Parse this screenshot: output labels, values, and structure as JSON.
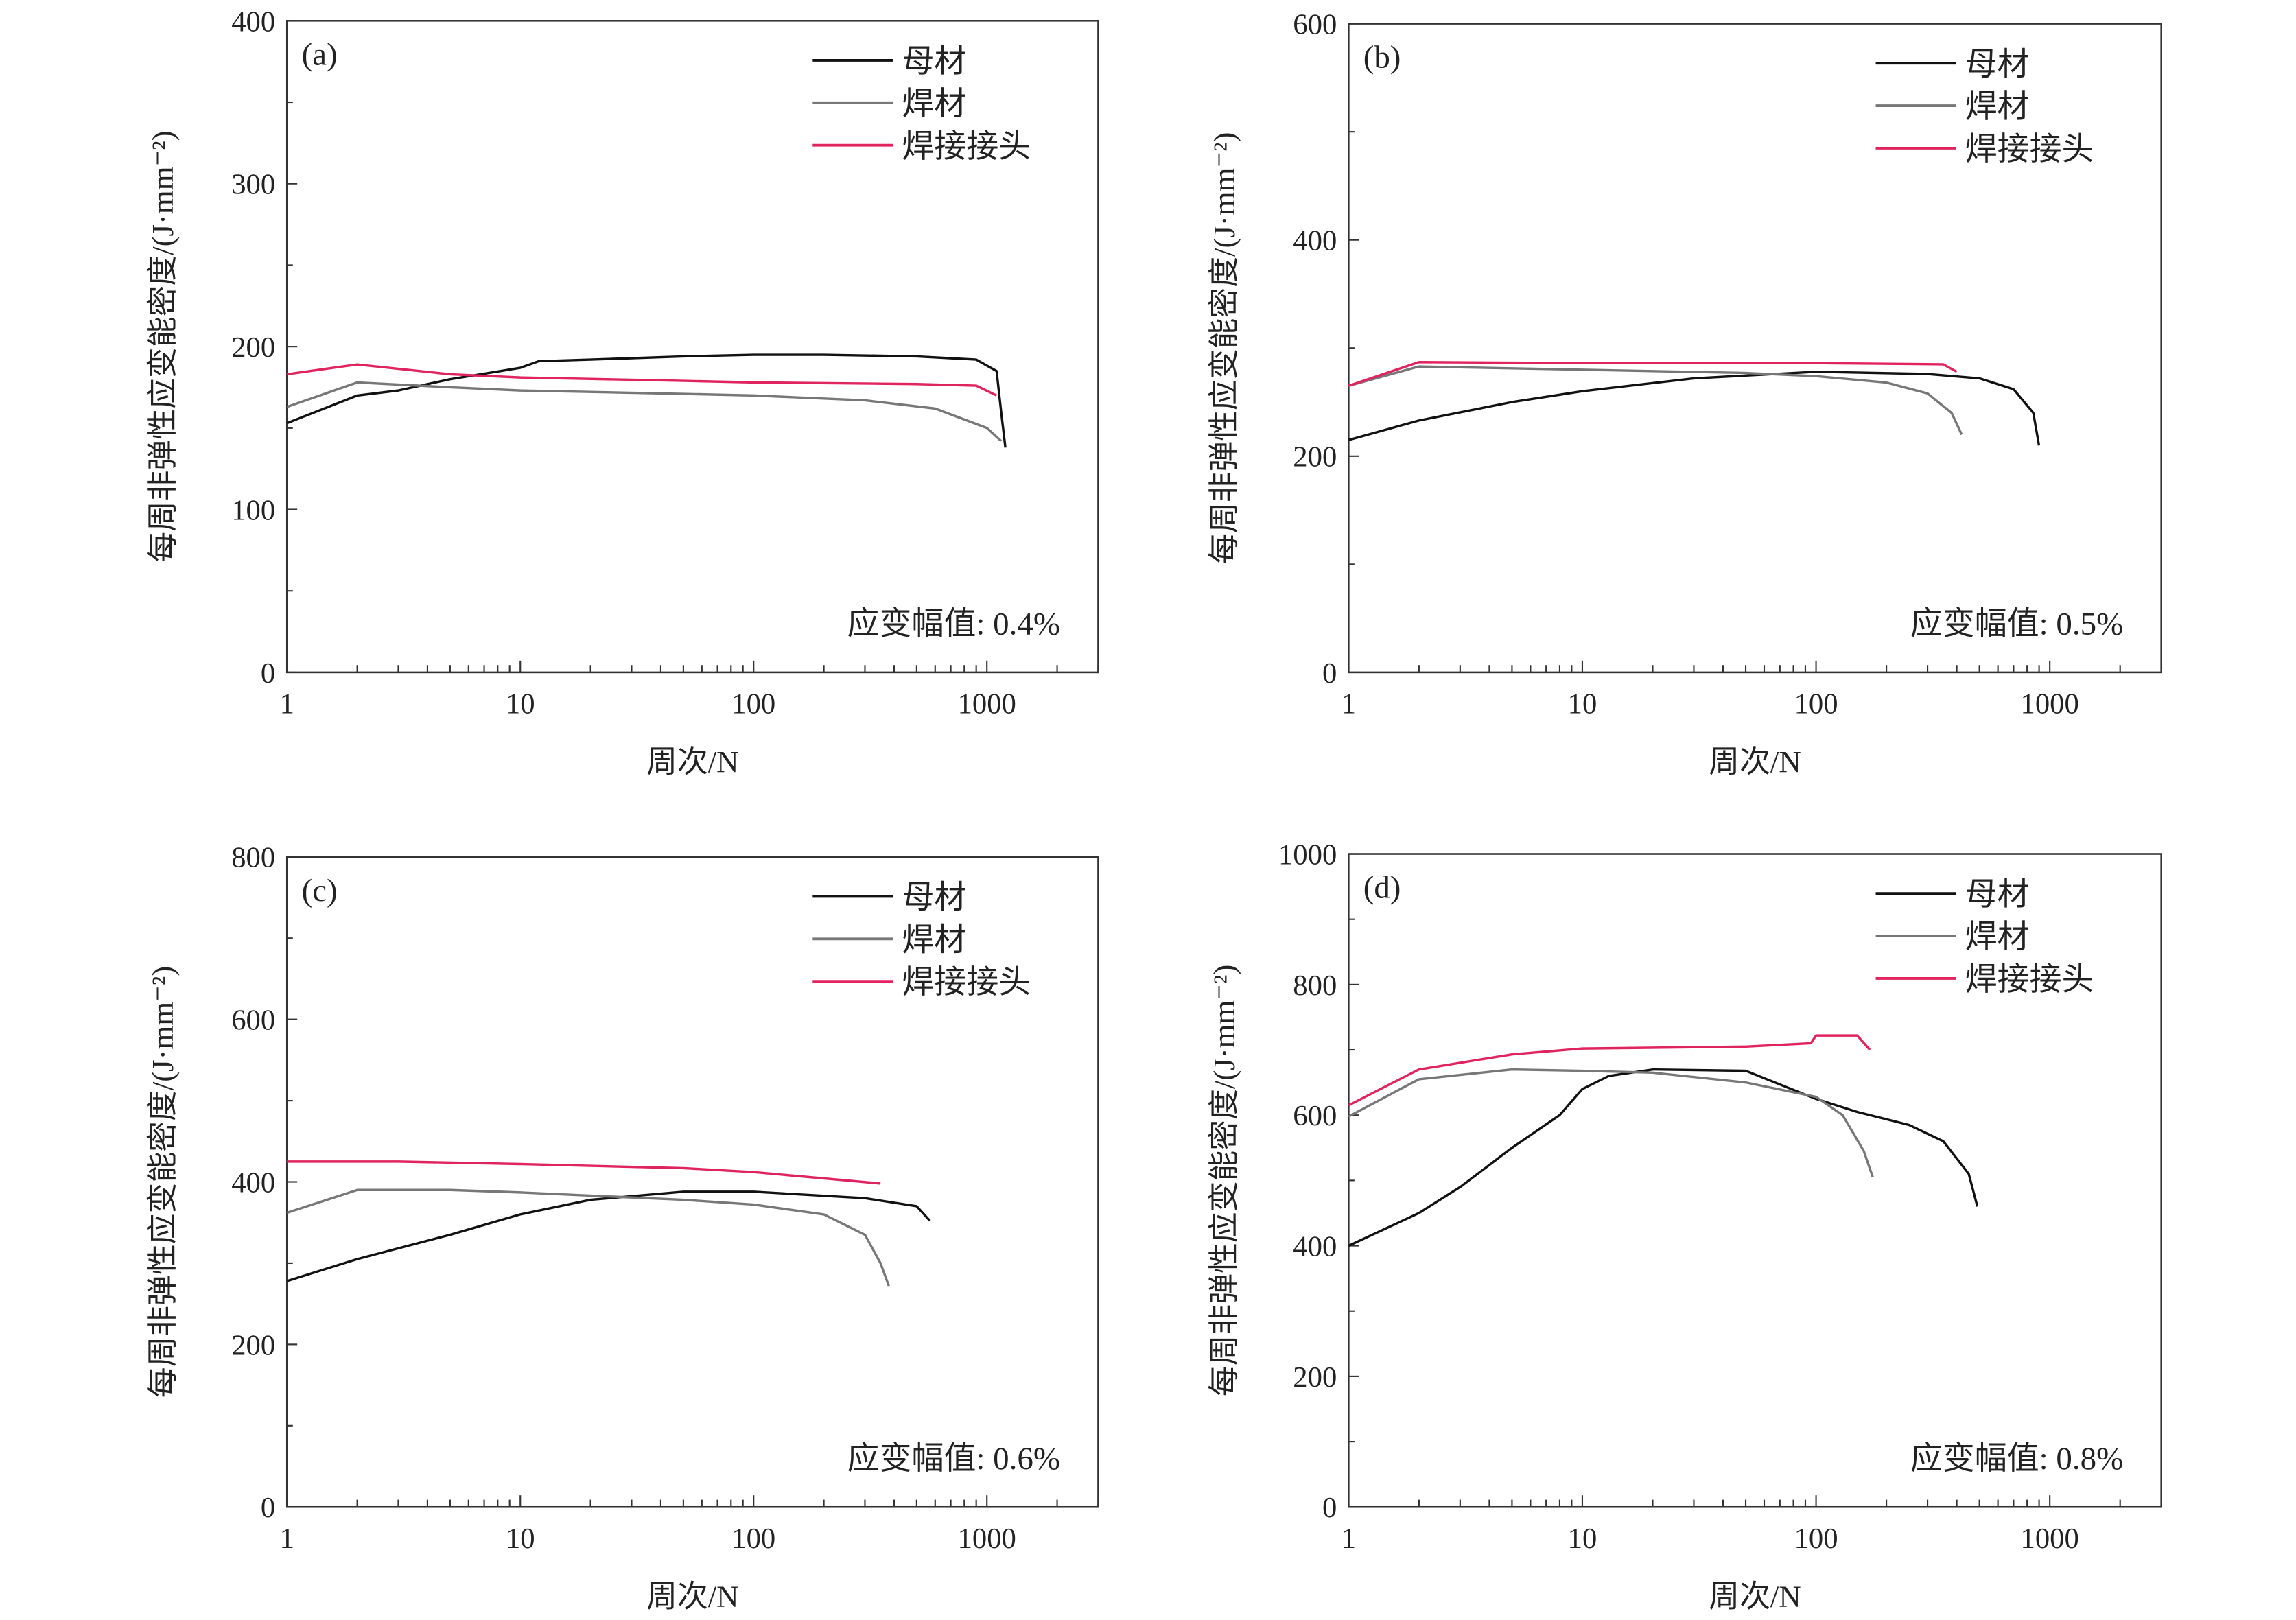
{
  "chart_data": [
    {
      "type": "line",
      "panel_label": "(a)",
      "annotation": "应变幅值: 0.4%",
      "xlabel": "周次/N",
      "ylabel": "每周非弹性应变能密度/(J·mm⁻²)",
      "xscale": "log",
      "xlim": [
        1,
        3000
      ],
      "ylim": [
        0,
        400
      ],
      "xticks": [
        1,
        10,
        100,
        1000
      ],
      "xtick_labels": [
        "1",
        "10",
        "100",
        "1000"
      ],
      "yticks": [
        0,
        100,
        200,
        300,
        400
      ],
      "ytick_labels": [
        "0",
        "100",
        "200",
        "300",
        "400"
      ],
      "legend_placement": "top-right",
      "series": [
        {
          "name": "母材",
          "color": "#111111",
          "x": [
            1,
            2,
            3,
            5,
            10,
            12,
            20,
            50,
            100,
            200,
            500,
            900,
            1100,
            1150,
            1200
          ],
          "y": [
            153,
            170,
            173,
            180,
            187,
            191,
            192,
            194,
            195,
            195,
            194,
            192,
            185,
            160,
            138
          ]
        },
        {
          "name": "焊材",
          "color": "#777777",
          "x": [
            1,
            2,
            5,
            10,
            50,
            100,
            300,
            600,
            1000,
            1150
          ],
          "y": [
            163,
            178,
            175,
            173,
            171,
            170,
            167,
            162,
            150,
            142
          ]
        },
        {
          "name": "焊接接头",
          "color": "#e0245e",
          "x": [
            1,
            2,
            5,
            10,
            50,
            100,
            500,
            900,
            1100
          ],
          "y": [
            183,
            189,
            183,
            181,
            179,
            178,
            177,
            176,
            170
          ]
        }
      ]
    },
    {
      "type": "line",
      "panel_label": "(b)",
      "annotation": "应变幅值: 0.5%",
      "xlabel": "周次/N",
      "ylabel": "每周非弹性应变能密度/(J·mm⁻²)",
      "xscale": "log",
      "xlim": [
        1,
        3000
      ],
      "ylim": [
        0,
        600
      ],
      "xticks": [
        1,
        10,
        100,
        1000
      ],
      "xtick_labels": [
        "1",
        "10",
        "100",
        "1000"
      ],
      "yticks": [
        0,
        200,
        400,
        600
      ],
      "ytick_labels": [
        "0",
        "200",
        "400",
        "600"
      ],
      "legend_placement": "top-right",
      "series": [
        {
          "name": "母材",
          "color": "#111111",
          "x": [
            1,
            2,
            5,
            10,
            30,
            100,
            300,
            500,
            700,
            850,
            900
          ],
          "y": [
            215,
            233,
            250,
            260,
            272,
            278,
            276,
            272,
            262,
            240,
            210
          ]
        },
        {
          "name": "焊材",
          "color": "#777777",
          "x": [
            1,
            2,
            10,
            50,
            100,
            200,
            300,
            380,
            420
          ],
          "y": [
            265,
            283,
            280,
            277,
            274,
            268,
            258,
            240,
            220
          ]
        },
        {
          "name": "焊接接头",
          "color": "#e0245e",
          "x": [
            1,
            2,
            10,
            100,
            350,
            400
          ],
          "y": [
            265,
            287,
            286,
            286,
            285,
            278
          ]
        }
      ]
    },
    {
      "type": "line",
      "panel_label": "(c)",
      "annotation": "应变幅值: 0.6%",
      "xlabel": "周次/N",
      "ylabel": "每周非弹性应变能密度/(J·mm⁻²)",
      "xscale": "log",
      "xlim": [
        1,
        3000
      ],
      "ylim": [
        0,
        800
      ],
      "xticks": [
        1,
        10,
        100,
        1000
      ],
      "xtick_labels": [
        "1",
        "10",
        "100",
        "1000"
      ],
      "yticks": [
        0,
        200,
        400,
        600,
        800
      ],
      "ytick_labels": [
        "0",
        "200",
        "400",
        "600",
        "800"
      ],
      "legend_placement": "top-right",
      "series": [
        {
          "name": "母材",
          "color": "#111111",
          "x": [
            1,
            2,
            5,
            10,
            20,
            50,
            100,
            300,
            500,
            570
          ],
          "y": [
            278,
            305,
            335,
            360,
            378,
            388,
            388,
            380,
            370,
            352
          ]
        },
        {
          "name": "焊材",
          "color": "#777777",
          "x": [
            1,
            2,
            5,
            10,
            50,
            100,
            200,
            300,
            350,
            380
          ],
          "y": [
            362,
            390,
            390,
            387,
            378,
            372,
            360,
            335,
            300,
            272
          ]
        },
        {
          "name": "焊接接头",
          "color": "#e0245e",
          "x": [
            1,
            3,
            10,
            50,
            100,
            350
          ],
          "y": [
            425,
            425,
            422,
            417,
            412,
            398
          ]
        }
      ]
    },
    {
      "type": "line",
      "panel_label": "(d)",
      "annotation": "应变幅值: 0.8%",
      "xlabel": "周次/N",
      "ylabel": "每周非弹性应变能密度/(J·mm⁻²)",
      "xscale": "log",
      "xlim": [
        1,
        3000
      ],
      "ylim": [
        0,
        1000
      ],
      "xticks": [
        1,
        10,
        100,
        1000
      ],
      "xtick_labels": [
        "1",
        "10",
        "100",
        "1000"
      ],
      "yticks": [
        0,
        200,
        400,
        600,
        800,
        1000
      ],
      "ytick_labels": [
        "0",
        "200",
        "400",
        "600",
        "800",
        "1000"
      ],
      "legend_placement": "top-right",
      "series": [
        {
          "name": "母材",
          "color": "#111111",
          "x": [
            1,
            2,
            3,
            5,
            8,
            10,
            13,
            20,
            50,
            100,
            150,
            250,
            350,
            450,
            490
          ],
          "y": [
            400,
            450,
            490,
            550,
            600,
            640,
            660,
            670,
            668,
            625,
            605,
            585,
            560,
            510,
            460
          ]
        },
        {
          "name": "焊材",
          "color": "#777777",
          "x": [
            1,
            2,
            5,
            10,
            20,
            50,
            100,
            130,
            160,
            175
          ],
          "y": [
            598,
            655,
            670,
            668,
            665,
            650,
            628,
            600,
            545,
            505
          ]
        },
        {
          "name": "焊接接头",
          "color": "#e0245e",
          "x": [
            1,
            2,
            5,
            10,
            50,
            95,
            100,
            150,
            170
          ],
          "y": [
            615,
            670,
            693,
            702,
            705,
            710,
            722,
            722,
            700
          ]
        }
      ]
    }
  ]
}
